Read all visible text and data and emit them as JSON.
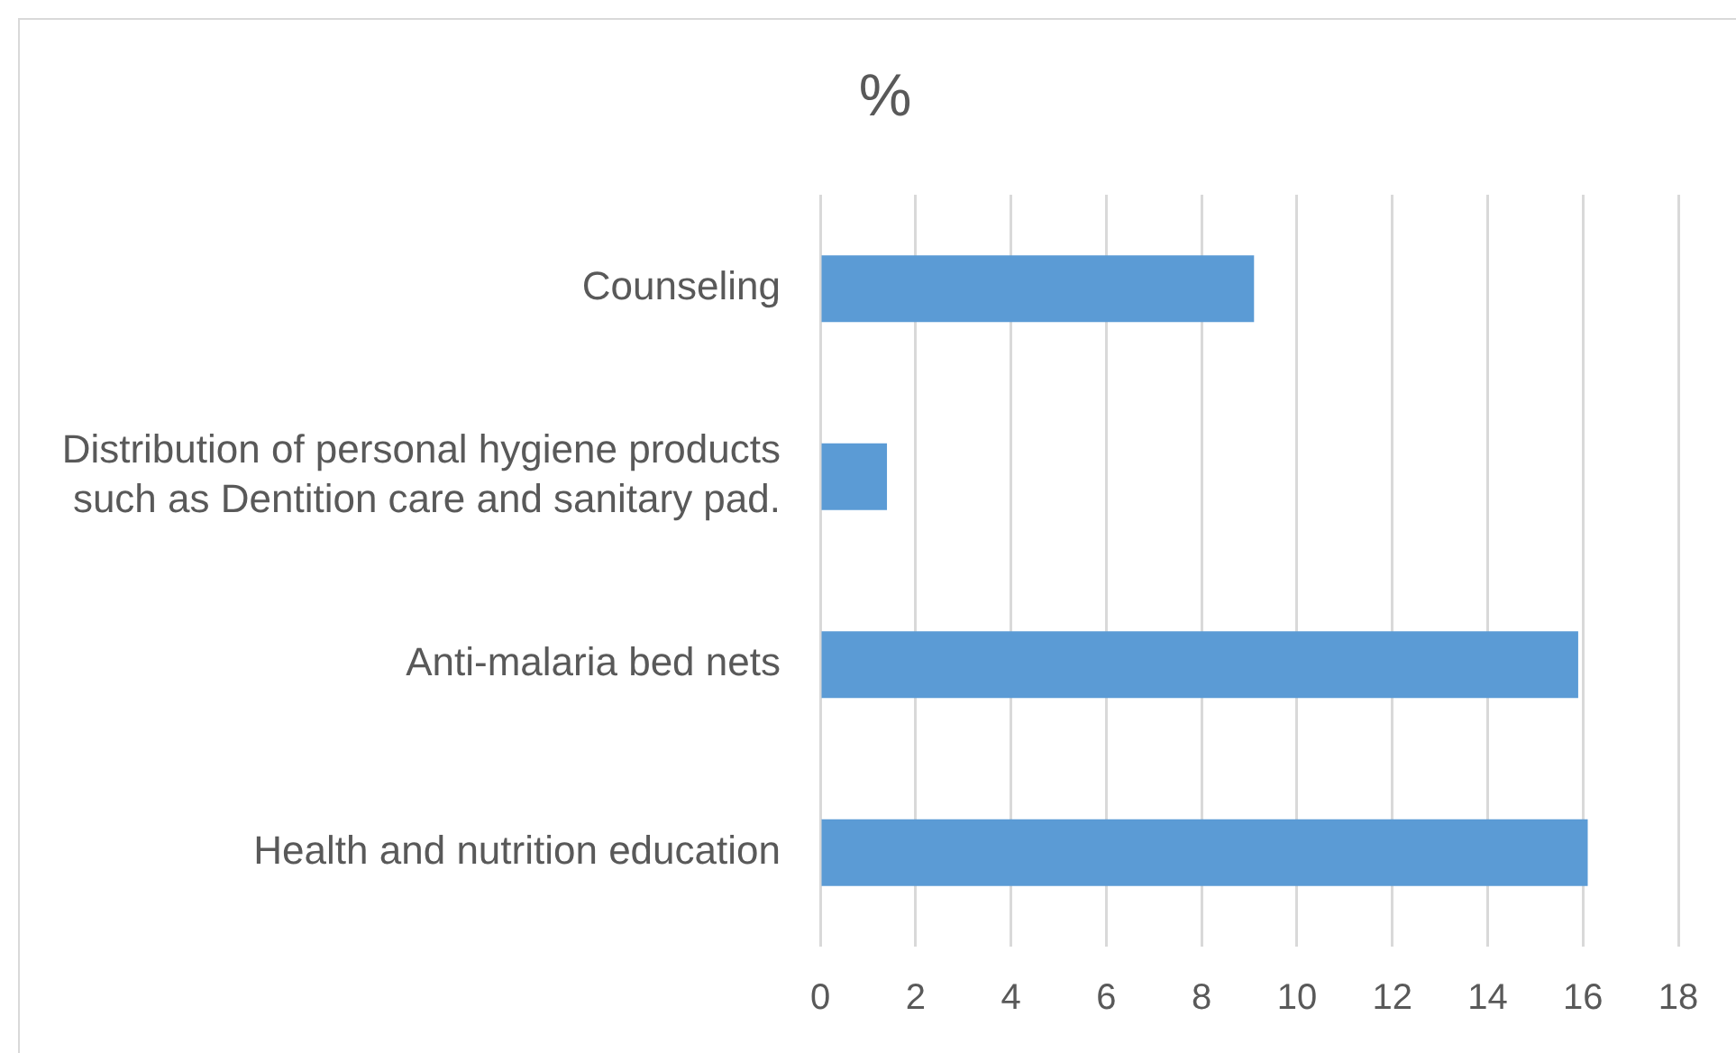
{
  "chart_data": {
    "type": "bar",
    "orientation": "horizontal",
    "title": "%",
    "categories": [
      "Counseling",
      "Distribution of personal hygiene products such as Dentition care and sanitary pad.",
      "Anti-malaria bed nets",
      "Health and nutrition education"
    ],
    "values": [
      9.1,
      1.4,
      15.9,
      16.1
    ],
    "color": "#5b9bd5",
    "xlim": [
      0,
      18
    ],
    "xticks": [
      0,
      2,
      4,
      6,
      8,
      10,
      12,
      14,
      16,
      18
    ],
    "grid": "x"
  }
}
